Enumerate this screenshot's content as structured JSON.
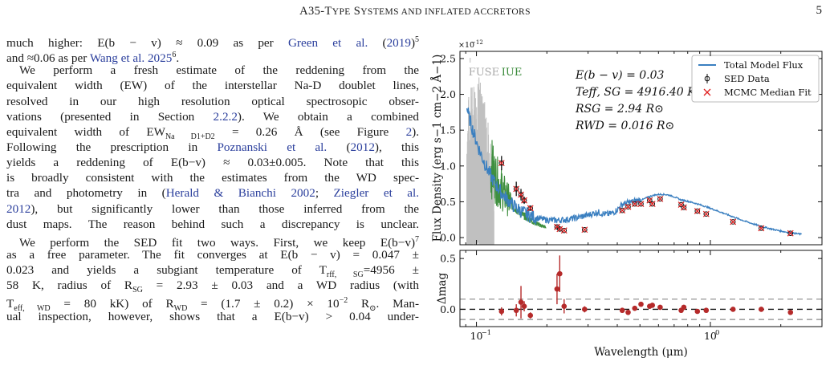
{
  "header": {
    "title_prefix": "A35-T",
    "title_rest_1": "YPE",
    "title_mid": " S",
    "title_rest_2": "YSTEMS AND INFLATED ACCRETORS",
    "page_number": "5"
  },
  "body_text": {
    "lines": [
      [
        "much higher: E(b − v) ≈ 0.09 as per ",
        "Green et al.",
        " (",
        "2019",
        ")",
        "5"
      ],
      [
        "and ≈0.06 as per ",
        "Wang et al. 2025",
        "6",
        "."
      ],
      [
        "We perform a fresh estimate of the reddening from the"
      ],
      [
        "equivalent width (EW) of the interstellar Na-D doublet lines,"
      ],
      [
        "resolved in our high resolution optical spectrosopic obser-"
      ],
      [
        "vations (presented in Section ",
        "2.2.2",
        "). We obtain a combined"
      ],
      [
        "equivalent width of EW",
        "Na D1+D2",
        " = 0.26 Å (see Figure ",
        "2",
        ")."
      ],
      [
        "Following the prescription in ",
        "Poznanski et al.",
        " (",
        "2012",
        "), this"
      ],
      [
        "yields a reddening of E(b−v) ≈ 0.03±0.005. Note that this"
      ],
      [
        "is broadly consistent with the estimates from the WD spec-"
      ],
      [
        "tra and photometry in (",
        "Herald & Bianchi 2002",
        "; ",
        "Ziegler et al."
      ],
      [
        "2012",
        "), but significantly lower than those inferred from the"
      ],
      [
        "dust maps. The reason behind such a discrepancy is unclear."
      ],
      [
        "We perform the SED fit two ways. First, we keep E(b−v)",
        "7"
      ],
      [
        "as a free parameter. The fit converges at E(b − v) = 0.047 ±"
      ],
      [
        "0.023 and yields a subgiant temperature of T",
        "rff, SG",
        "=4956 ±"
      ],
      [
        "58 K, radius of R",
        "SG",
        " = 2.93 ± 0.03 and a WD radius (with"
      ],
      [
        "T",
        "eff, WD",
        " = 80 kK) of R",
        "WD",
        " = (1.7 ± 0.2) × 10",
        "−2",
        " R",
        "⊙",
        ". Man-"
      ],
      [
        "ual inspection, however, shows that a E(b−v) > 0.04 under-"
      ]
    ]
  },
  "chart_data": [
    {
      "type": "line",
      "panel": "SED",
      "exponent_label": "×10−12",
      "ylabel": "Flux Density (erg s−1 cm−2 Å−1)",
      "xscale": "log",
      "xlim": [
        0.085,
        3.0
      ],
      "ylim": [
        -0.1,
        2.6
      ],
      "yticks": [
        "0.0",
        "0.5",
        "1.0",
        "1.5",
        "2.0",
        "2.5"
      ],
      "instrument_labels": [
        {
          "text": "FUSE",
          "color": "#a8a8a8"
        },
        {
          "text": "IUE",
          "color": "#3a8a3a"
        }
      ],
      "annotations": [
        "E(b − v) = 0.03",
        "Teff, SG = 4916.40 K",
        "RSG = 2.94 R⊙",
        "RWD = 0.016 R⊙"
      ],
      "legend_position": "top-right",
      "legend": [
        "Total Model Flux",
        "SED Data",
        "MCMC Median Fit"
      ],
      "colors": {
        "model": "#3a7fc0",
        "fuse": "#c0c0c0",
        "iue": "#3f8f3f",
        "data": "#111111",
        "fit": "#e02020"
      },
      "sed_points": [
        {
          "x": 0.128,
          "y": 1.04,
          "err": 0.1
        },
        {
          "x": 0.148,
          "y": 0.68,
          "err": 0.1
        },
        {
          "x": 0.155,
          "y": 0.6,
          "err": 0.08
        },
        {
          "x": 0.16,
          "y": 0.52,
          "err": 0.05
        },
        {
          "x": 0.17,
          "y": 0.41,
          "err": 0.03
        },
        {
          "x": 0.221,
          "y": 0.15,
          "err": 0.02
        },
        {
          "x": 0.227,
          "y": 0.12,
          "err": 0.02
        },
        {
          "x": 0.237,
          "y": 0.1,
          "err": 0.01
        },
        {
          "x": 0.29,
          "y": 0.11,
          "err": 0.01
        },
        {
          "x": 0.42,
          "y": 0.38,
          "err": 0.01
        },
        {
          "x": 0.445,
          "y": 0.43,
          "err": 0.01
        },
        {
          "x": 0.475,
          "y": 0.47,
          "err": 0.01
        },
        {
          "x": 0.505,
          "y": 0.47,
          "err": 0.01
        },
        {
          "x": 0.55,
          "y": 0.52,
          "err": 0.01
        },
        {
          "x": 0.565,
          "y": 0.47,
          "err": 0.01
        },
        {
          "x": 0.61,
          "y": 0.54,
          "err": 0.01
        },
        {
          "x": 0.75,
          "y": 0.46,
          "err": 0.01
        },
        {
          "x": 0.77,
          "y": 0.42,
          "err": 0.01
        },
        {
          "x": 0.88,
          "y": 0.37,
          "err": 0.01
        },
        {
          "x": 0.96,
          "y": 0.33,
          "err": 0.01
        },
        {
          "x": 1.25,
          "y": 0.22,
          "err": 0.01
        },
        {
          "x": 1.65,
          "y": 0.13,
          "err": 0.01
        },
        {
          "x": 2.2,
          "y": 0.06,
          "err": 0.01
        }
      ]
    },
    {
      "type": "scatter",
      "panel": "residuals",
      "ylabel": "Δmag",
      "xlabel": "Wavelength (μm)",
      "xscale": "log",
      "xlim": [
        0.085,
        3.0
      ],
      "ylim": [
        -0.17,
        0.58
      ],
      "yticks": [
        "0.0",
        "0.5"
      ],
      "xticks": [
        "10−1",
        "100"
      ],
      "reference_lines": [
        0.0,
        0.1,
        -0.1
      ],
      "points": [
        {
          "x": 0.128,
          "y": -0.02,
          "err": 0.04
        },
        {
          "x": 0.148,
          "y": -0.01,
          "err": 0.06
        },
        {
          "x": 0.155,
          "y": 0.07,
          "err": 0.16
        },
        {
          "x": 0.16,
          "y": 0.03,
          "err": 0.05
        },
        {
          "x": 0.17,
          "y": -0.06,
          "err": 0.03
        },
        {
          "x": 0.221,
          "y": 0.2,
          "err": 0.15
        },
        {
          "x": 0.227,
          "y": 0.35,
          "err": 0.18
        },
        {
          "x": 0.237,
          "y": 0.03,
          "err": 0.07
        },
        {
          "x": 0.29,
          "y": 0.0,
          "err": 0.03
        },
        {
          "x": 0.42,
          "y": -0.01,
          "err": 0.01
        },
        {
          "x": 0.445,
          "y": -0.03,
          "err": 0.01
        },
        {
          "x": 0.475,
          "y": 0.01,
          "err": 0.01
        },
        {
          "x": 0.505,
          "y": 0.05,
          "err": 0.01
        },
        {
          "x": 0.55,
          "y": 0.03,
          "err": 0.01
        },
        {
          "x": 0.565,
          "y": 0.04,
          "err": 0.01
        },
        {
          "x": 0.61,
          "y": 0.02,
          "err": 0.01
        },
        {
          "x": 0.75,
          "y": -0.01,
          "err": 0.01
        },
        {
          "x": 0.77,
          "y": 0.02,
          "err": 0.01
        },
        {
          "x": 0.88,
          "y": -0.02,
          "err": 0.01
        },
        {
          "x": 0.96,
          "y": -0.01,
          "err": 0.01
        },
        {
          "x": 1.25,
          "y": 0.0,
          "err": 0.01
        },
        {
          "x": 1.65,
          "y": 0.0,
          "err": 0.01
        },
        {
          "x": 2.2,
          "y": -0.03,
          "err": 0.01
        }
      ]
    }
  ]
}
